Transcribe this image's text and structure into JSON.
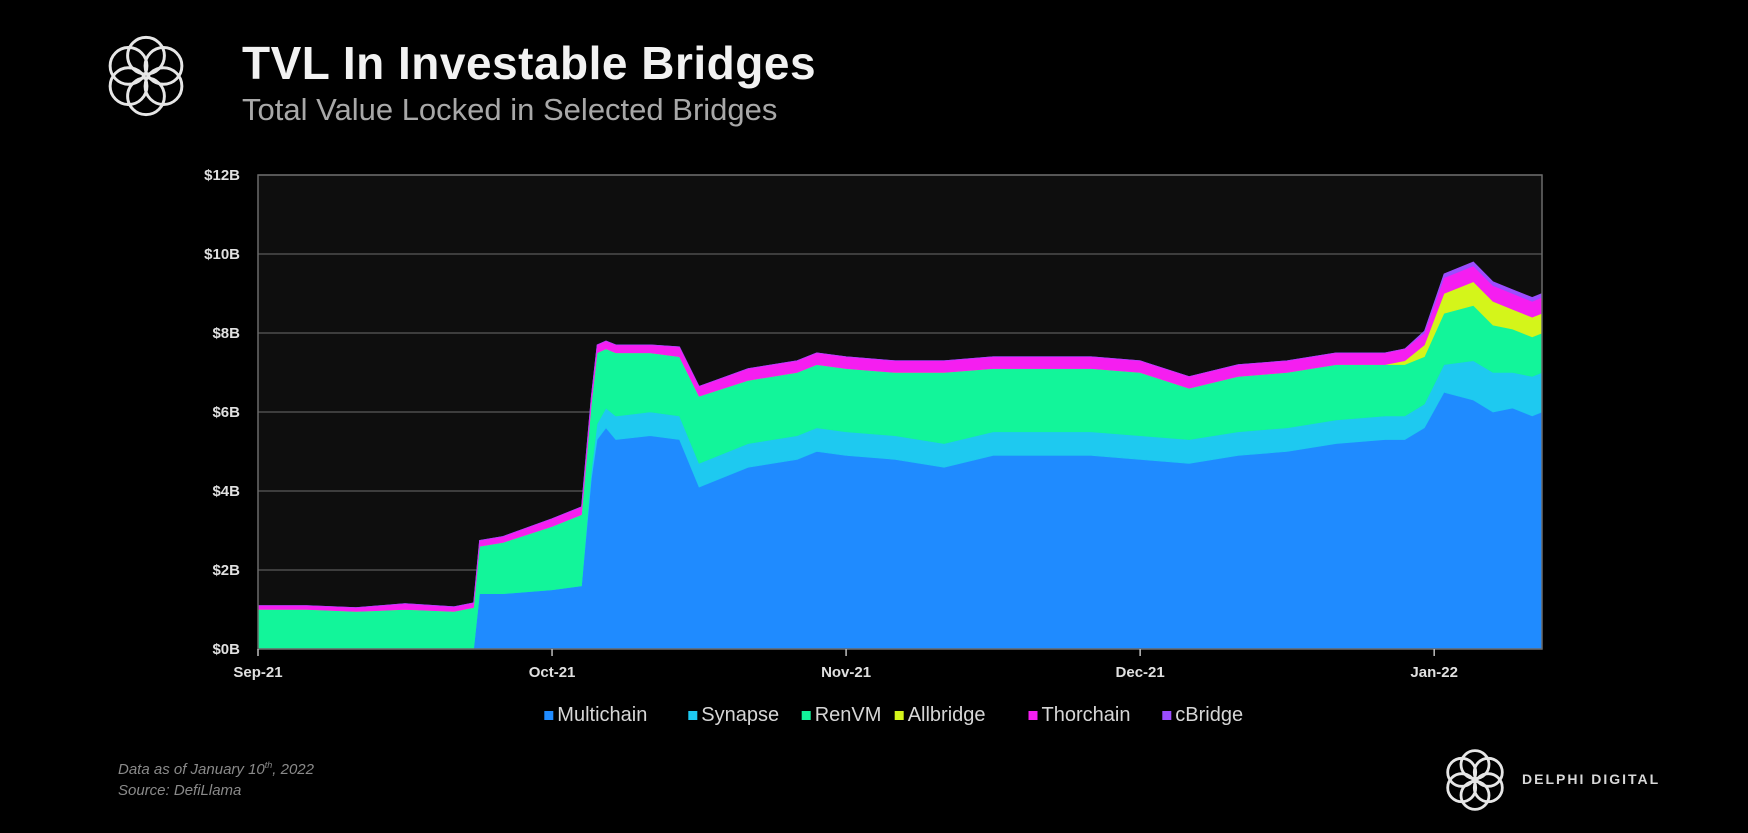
{
  "header": {
    "title": "TVL In Investable Bridges",
    "subtitle": "Total Value Locked in Selected Bridges"
  },
  "footer": {
    "date_note_prefix": "Data as of January 10",
    "date_note_sup": "th",
    "date_note_suffix": ", 2022",
    "source": "Source: DefiLlama",
    "brand": "DELPHI DIGITAL"
  },
  "icons": {
    "logo": "delphi-flower-logo-icon",
    "brand_logo": "delphi-flower-logo-icon"
  },
  "chart_data": {
    "type": "area",
    "stacked": true,
    "title": "TVL In Investable Bridges",
    "subtitle": "Total Value Locked in Selected Bridges",
    "xlabel": "",
    "ylabel": "",
    "x_ticks": [
      "Sep-21",
      "Oct-21",
      "Nov-21",
      "Dec-21",
      "Jan-22"
    ],
    "y_ticks": [
      "$0B",
      "$2B",
      "$4B",
      "$6B",
      "$8B",
      "$10B",
      "$12B"
    ],
    "ylim": [
      0,
      12
    ],
    "y_unit": "$B",
    "x_unit": "days since Sep-21 tick",
    "grid": true,
    "legend_position": "bottom",
    "x": [
      0,
      5,
      10,
      15,
      20,
      22,
      22.6,
      25,
      30,
      33,
      34,
      34.6,
      35.5,
      36.5,
      40,
      43,
      45,
      50,
      55,
      57,
      60,
      65,
      70,
      75,
      80,
      85,
      90,
      95,
      100,
      105,
      110,
      115,
      117,
      119,
      121,
      124,
      126,
      128,
      130,
      131
    ],
    "series": [
      {
        "name": "Multichain",
        "color": "#1f8bff",
        "values": [
          0,
          0,
          0,
          0,
          0,
          0,
          1.4,
          1.4,
          1.5,
          1.6,
          4.3,
          5.3,
          5.6,
          5.3,
          5.4,
          5.3,
          4.1,
          4.6,
          4.8,
          5.0,
          4.9,
          4.8,
          4.6,
          4.9,
          4.9,
          4.9,
          4.8,
          4.7,
          4.9,
          5.0,
          5.2,
          5.3,
          5.3,
          5.6,
          6.5,
          6.3,
          6.0,
          6.1,
          5.9,
          6.0
        ]
      },
      {
        "name": "Synapse",
        "color": "#1ec9f0",
        "values": [
          0,
          0,
          0,
          0,
          0,
          0,
          0,
          0,
          0,
          0,
          0.2,
          0.4,
          0.5,
          0.6,
          0.6,
          0.6,
          0.6,
          0.6,
          0.6,
          0.6,
          0.6,
          0.6,
          0.6,
          0.6,
          0.6,
          0.6,
          0.6,
          0.6,
          0.6,
          0.6,
          0.6,
          0.6,
          0.6,
          0.6,
          0.7,
          1.0,
          1.0,
          0.9,
          1.0,
          1.0
        ]
      },
      {
        "name": "RenVM",
        "color": "#12f59a",
        "values": [
          1.0,
          1.0,
          0.95,
          1.0,
          0.95,
          1.05,
          1.2,
          1.3,
          1.6,
          1.8,
          1.7,
          1.8,
          1.5,
          1.6,
          1.5,
          1.5,
          1.7,
          1.6,
          1.6,
          1.6,
          1.6,
          1.6,
          1.8,
          1.6,
          1.6,
          1.6,
          1.6,
          1.3,
          1.4,
          1.4,
          1.4,
          1.3,
          1.3,
          1.2,
          1.3,
          1.4,
          1.2,
          1.1,
          1.0,
          1.0
        ]
      },
      {
        "name": "Allbridge",
        "color": "#d4f51a",
        "values": [
          0,
          0,
          0,
          0,
          0,
          0,
          0,
          0,
          0,
          0,
          0,
          0,
          0,
          0,
          0,
          0,
          0,
          0,
          0,
          0,
          0,
          0,
          0,
          0,
          0,
          0,
          0,
          0,
          0,
          0,
          0,
          0,
          0.1,
          0.3,
          0.5,
          0.6,
          0.6,
          0.5,
          0.5,
          0.5
        ]
      },
      {
        "name": "Thorchain",
        "color": "#f51ef0",
        "values": [
          0.1,
          0.1,
          0.1,
          0.15,
          0.12,
          0.12,
          0.15,
          0.15,
          0.2,
          0.2,
          0.2,
          0.2,
          0.2,
          0.2,
          0.2,
          0.25,
          0.25,
          0.3,
          0.3,
          0.3,
          0.3,
          0.3,
          0.3,
          0.3,
          0.3,
          0.3,
          0.3,
          0.3,
          0.3,
          0.3,
          0.3,
          0.3,
          0.3,
          0.3,
          0.4,
          0.4,
          0.4,
          0.4,
          0.4,
          0.4
        ]
      },
      {
        "name": "cBridge",
        "color": "#9b4dff",
        "values": [
          0,
          0,
          0,
          0,
          0,
          0,
          0,
          0,
          0,
          0,
          0,
          0,
          0,
          0,
          0,
          0,
          0,
          0,
          0,
          0,
          0,
          0,
          0,
          0,
          0,
          0,
          0,
          0,
          0,
          0,
          0,
          0,
          0,
          0.05,
          0.1,
          0.1,
          0.1,
          0.1,
          0.1,
          0.1
        ]
      }
    ]
  }
}
